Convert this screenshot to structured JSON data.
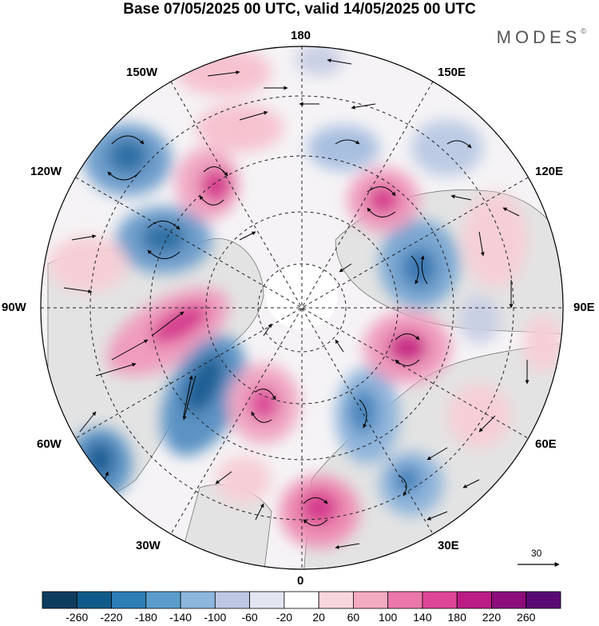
{
  "header": {
    "title": "Base 07/05/2025 00 UTC, valid 14/05/2025 00 UTC",
    "brand": "MODES",
    "brand_mark": "©"
  },
  "map": {
    "projection": "north-polar-stereographic",
    "longitude_labels": {
      "top": "180",
      "bottom": "0",
      "left": "90W",
      "right": "90E",
      "upper_left": "150W",
      "upper_right": "150E",
      "mid_upper_left": "120W",
      "mid_upper_right": "120E",
      "mid_lower_left": "60W",
      "mid_lower_right": "60E",
      "lower_left": "30W",
      "lower_right": "30E"
    },
    "vector_scale_label": "30",
    "colors": {
      "neg_strong": "#1f4e79",
      "neg_mid": "#5b93c4",
      "neg_weak": "#c9cfe4",
      "pos_weak": "#f6cfd6",
      "pos_mid": "#ee8fb4",
      "pos_strong": "#d63c8f",
      "land": "#e6e6e6"
    }
  },
  "colorbar": {
    "ticks": [
      "-260",
      "-220",
      "-180",
      "-140",
      "-100",
      "-60",
      "-20",
      "20",
      "60",
      "100",
      "140",
      "180",
      "220",
      "260"
    ],
    "colors": [
      "#0d3c5e",
      "#0f5a8a",
      "#2d7db7",
      "#5a9dcc",
      "#8cb6dc",
      "#bcc8e4",
      "#e3e6f1",
      "#ffffff",
      "#f8d6dc",
      "#f3abc2",
      "#ec78ab",
      "#de4597",
      "#bb1c86",
      "#8c0c7c",
      "#5a0a73"
    ]
  }
}
